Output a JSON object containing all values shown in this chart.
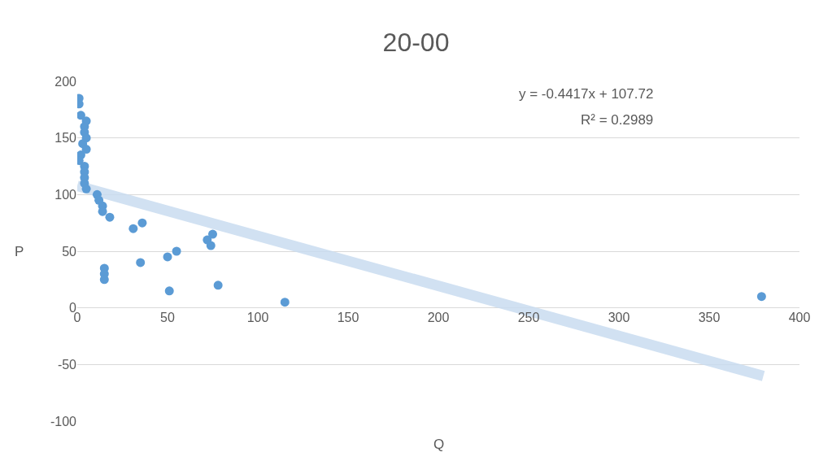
{
  "chart_data": {
    "type": "scatter",
    "title": "20-00",
    "xlabel": "Q",
    "ylabel": "P",
    "xlim": [
      0,
      400
    ],
    "xticks": [
      0,
      50,
      100,
      150,
      200,
      250,
      300,
      350,
      400
    ],
    "ylim": [
      -100,
      200
    ],
    "yticks": [
      -100,
      -50,
      0,
      50,
      100,
      150,
      200
    ],
    "grid": "y",
    "marker": "circle",
    "annotations": [
      "y = -0.4417x + 107.72",
      "R² = 0.2989"
    ],
    "series": [
      {
        "color": "#5b9bd5",
        "x": [
          1,
          1,
          2,
          3,
          2,
          1,
          5,
          4,
          4,
          5,
          5,
          4,
          4,
          4,
          4,
          5,
          11,
          12,
          14,
          14,
          18,
          31,
          36,
          72,
          75,
          74,
          50,
          55,
          35,
          15,
          15,
          15,
          51,
          78,
          115,
          379
        ],
        "values": [
          185,
          180,
          170,
          145,
          135,
          130,
          165,
          160,
          155,
          150,
          140,
          125,
          120,
          115,
          110,
          105,
          100,
          95,
          90,
          85,
          80,
          70,
          75,
          60,
          65,
          55,
          45,
          50,
          40,
          35,
          30,
          25,
          15,
          20,
          5,
          10
        ]
      },
      {
        "type": "line",
        "color": "#c9dcf0",
        "x": [
          0,
          380
        ],
        "values": [
          107.7,
          -60.1
        ],
        "marker": "none"
      }
    ]
  }
}
